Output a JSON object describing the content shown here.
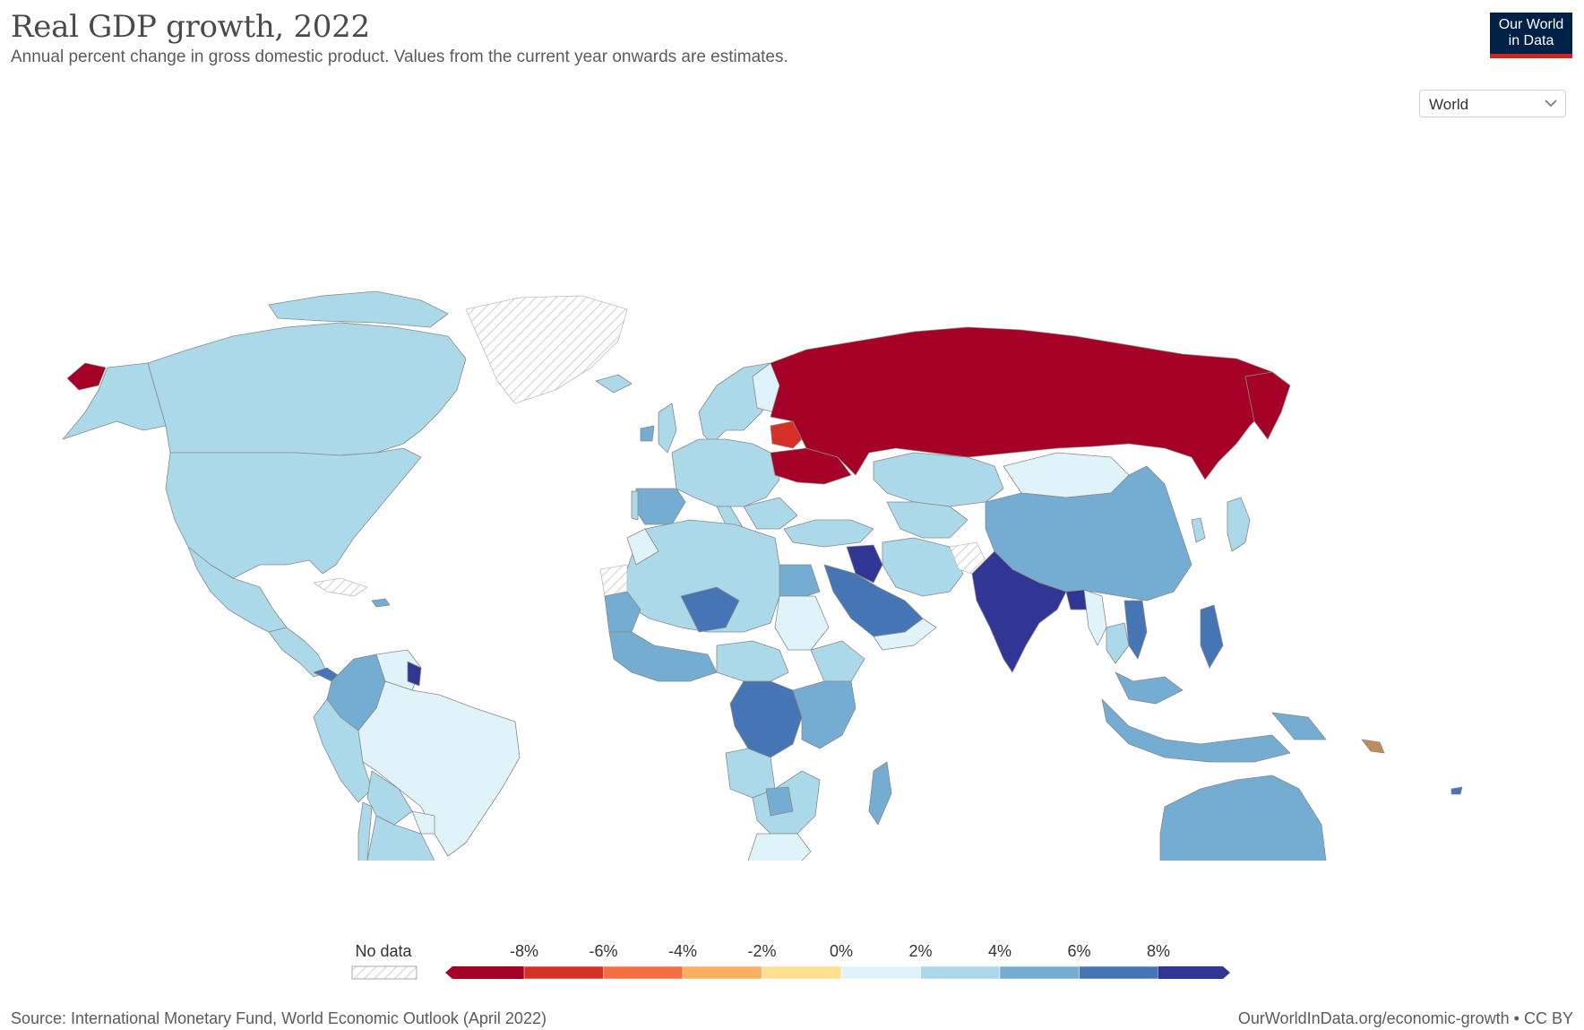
{
  "title": "Real GDP growth, 2022",
  "subtitle": "Annual percent change in gross domestic product. Values from the current year onwards are estimates.",
  "logo": {
    "line1": "Our World",
    "line2": "in Data"
  },
  "entity_selector": {
    "selected": "World",
    "icon": "chevron-down-icon"
  },
  "legend": {
    "no_data_label": "No data",
    "tick_labels": [
      "-8%",
      "-6%",
      "-4%",
      "-2%",
      "0%",
      "2%",
      "4%",
      "6%",
      "8%"
    ],
    "bin_colors": [
      "#a50026",
      "#d73027",
      "#f46d43",
      "#fdae61",
      "#fee090",
      "#e0f3f8",
      "#abd9e9",
      "#74add1",
      "#4575b4",
      "#313695"
    ]
  },
  "map_colors": {
    "ocean": "#ffffff",
    "border": "#9a9a9a",
    "no_data": "#f2f2f2"
  },
  "source": "Source: International Monetary Fund, World Economic Outlook (April 2022)",
  "url_text": "OurWorldInData.org/economic-growth • CC BY"
}
